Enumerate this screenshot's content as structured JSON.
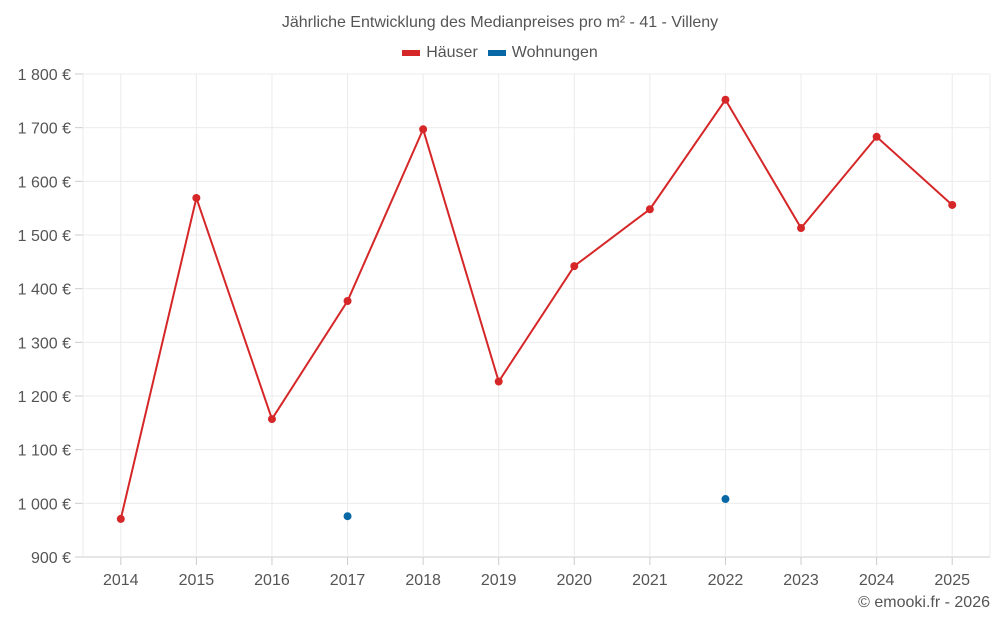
{
  "title": "Jährliche Entwicklung des Medianpreises pro m² - 41 - Villeny",
  "legend": [
    {
      "label": "Häuser",
      "color": "#d62728"
    },
    {
      "label": "Wohnungen",
      "color": "#0868a6"
    }
  ],
  "copyright": "© emooki.fr - 2026",
  "chart_data": {
    "type": "line",
    "title": "Jährliche Entwicklung des Medianpreises pro m² - 41 - Villeny",
    "xlabel": "",
    "ylabel": "",
    "categories": [
      "2014",
      "2015",
      "2016",
      "2017",
      "2018",
      "2019",
      "2020",
      "2021",
      "2022",
      "2023",
      "2024",
      "2025"
    ],
    "series": [
      {
        "name": "Häuser",
        "color": "#d62728",
        "values": [
          971,
          1569,
          1157,
          1377,
          1697,
          1227,
          1442,
          1548,
          1752,
          1513,
          1683,
          1556
        ]
      },
      {
        "name": "Wohnungen",
        "color": "#0868a6",
        "values": [
          null,
          null,
          null,
          976,
          null,
          null,
          null,
          null,
          1008,
          null,
          null,
          null
        ]
      }
    ],
    "ylim": [
      900,
      1800
    ],
    "yticks": [
      900,
      1000,
      1100,
      1200,
      1300,
      1400,
      1500,
      1600,
      1700,
      1800
    ],
    "ytick_labels": [
      "900 €",
      "1 000 €",
      "1 100 €",
      "1 200 €",
      "1 300 €",
      "1 400 €",
      "1 500 €",
      "1 600 €",
      "1 700 €",
      "1 800 €"
    ],
    "grid": true,
    "legend_position": "top"
  }
}
